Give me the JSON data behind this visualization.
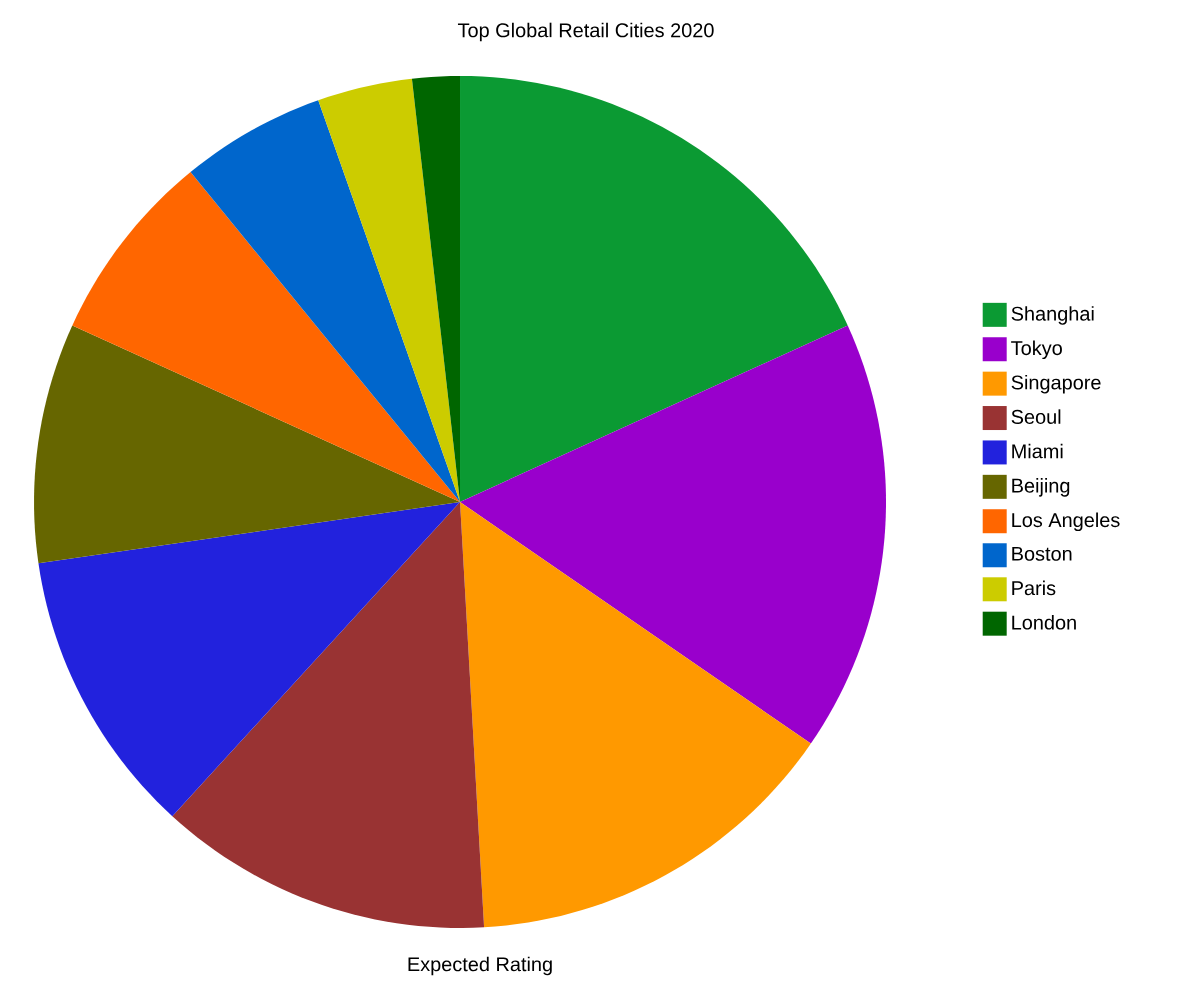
{
  "chart_data": {
    "type": "pie",
    "title": "Top Global Retail Cities 2020",
    "annotations": [
      "Expected Rating"
    ],
    "categories": [
      "Shanghai",
      "Tokyo",
      "Singapore",
      "Seoul",
      "Miami",
      "Beijing",
      "Los Angeles",
      "Boston",
      "Paris",
      "London"
    ],
    "values": [
      18.2,
      16.4,
      14.5,
      12.7,
      10.9,
      9.1,
      7.3,
      5.5,
      3.6,
      1.8
    ],
    "colors": [
      "#0b9a33",
      "#9900cc",
      "#ff9900",
      "#993333",
      "#2222dd",
      "#666600",
      "#ff6600",
      "#0066cc",
      "#cccc00",
      "#006600"
    ],
    "legend": "right"
  }
}
